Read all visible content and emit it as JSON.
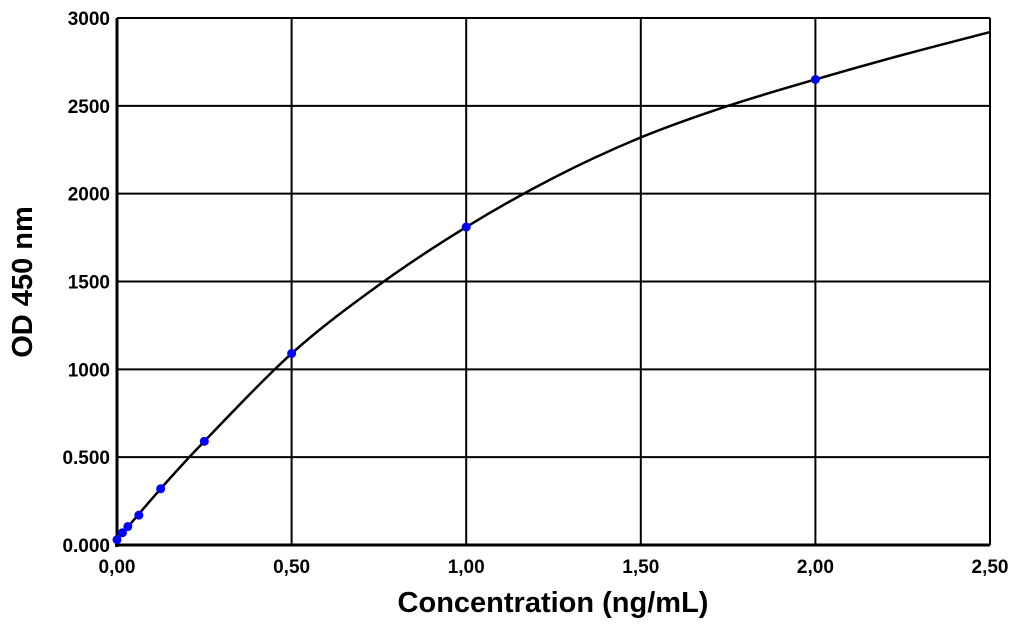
{
  "chart_data": {
    "type": "scatter",
    "title": "",
    "xlabel": "Concentration (ng/mL)",
    "ylabel": "OD 450 nm",
    "xlim": [
      0,
      2.5
    ],
    "ylim": [
      0,
      3000
    ],
    "grid": true,
    "x_ticks": [
      0,
      0.5,
      1.0,
      1.5,
      2.0,
      2.5
    ],
    "x_tick_labels": [
      "0,00",
      "0,50",
      "1,00",
      "1,50",
      "2,00",
      "2,50"
    ],
    "y_ticks": [
      0,
      500,
      1000,
      1500,
      2000,
      2500,
      3000
    ],
    "y_tick_labels": [
      "0.000",
      "0.500",
      "1000",
      "1500",
      "2000",
      "2500",
      "3000"
    ],
    "points": {
      "x": [
        0,
        0.0156,
        0.031,
        0.0625,
        0.125,
        0.25,
        0.5,
        1.0,
        2.0
      ],
      "y": [
        30,
        70,
        105,
        170,
        320,
        590,
        1090,
        1810,
        2650
      ],
      "color": "#0000ff"
    },
    "fit_curve": {
      "x": [
        0,
        0.125,
        0.25,
        0.5,
        0.75,
        1.0,
        1.25,
        1.5,
        1.75,
        2.0,
        2.25,
        2.5
      ],
      "y": [
        30,
        320,
        590,
        1090,
        1480,
        1810,
        2090,
        2320,
        2500,
        2650,
        2790,
        2920
      ],
      "color": "#000000"
    }
  }
}
